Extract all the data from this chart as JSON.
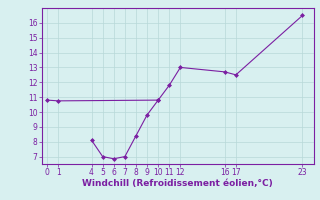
{
  "line1_x": [
    0,
    1,
    10
  ],
  "line1_y": [
    10.8,
    10.75,
    10.8
  ],
  "line2_x": [
    4,
    5,
    6,
    7,
    8,
    9,
    10,
    11,
    12,
    16,
    17,
    23
  ],
  "line2_y": [
    8.1,
    7.0,
    6.85,
    7.0,
    8.4,
    9.8,
    10.8,
    11.8,
    13.0,
    12.7,
    12.5,
    16.5
  ],
  "line_color": "#7b1fa2",
  "marker": "D",
  "marker_size": 2.0,
  "xlim": [
    -0.5,
    24
  ],
  "ylim": [
    6.5,
    17.0
  ],
  "xticks": [
    0,
    1,
    4,
    5,
    6,
    7,
    8,
    9,
    10,
    11,
    12,
    16,
    17,
    23
  ],
  "yticks": [
    7,
    8,
    9,
    10,
    11,
    12,
    13,
    14,
    15,
    16
  ],
  "xlabel": "Windchill (Refroidissement éolien,°C)",
  "bg_color": "#d8f0f0",
  "grid_color": "#b8d8d8",
  "tick_fontsize": 5.5,
  "label_fontsize": 6.5
}
